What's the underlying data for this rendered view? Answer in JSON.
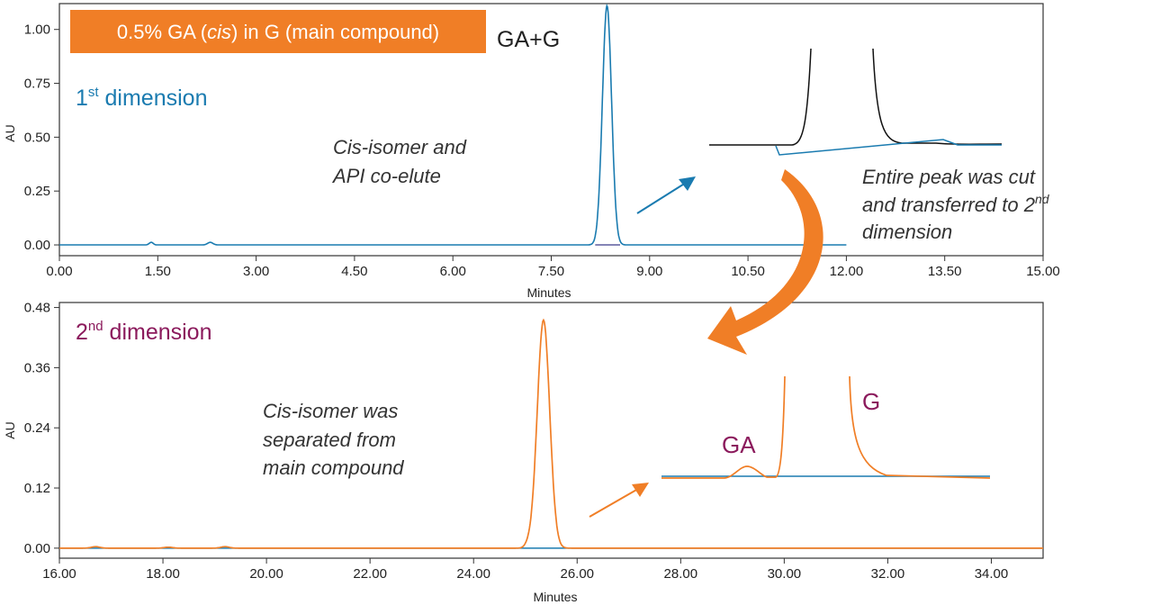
{
  "colors": {
    "blue": "#1a7bb0",
    "orange": "#f07e26",
    "purple": "#8b1a5c",
    "dark": "#222222",
    "axis": "#333333"
  },
  "banner": {
    "text": "0.5% GA (cis) in G (main compound)",
    "prefix": "0.5% GA (",
    "italic": "cis",
    "suffix": ") in G (main compound)"
  },
  "chart_data": [
    {
      "type": "line",
      "title": "1st dimension",
      "title_main": "1",
      "title_sup": "st",
      "title_rest": " dimension",
      "xlabel": "Minutes",
      "ylabel": "AU",
      "xlim": [
        0,
        15
      ],
      "ylim": [
        -0.05,
        1.12
      ],
      "xticks": [
        "0.00",
        "1.50",
        "3.00",
        "4.50",
        "6.00",
        "7.50",
        "9.00",
        "10.50",
        "12.00",
        "13.50",
        "15.00"
      ],
      "yticks": [
        "0.00",
        "0.25",
        "0.50",
        "0.75",
        "1.00"
      ],
      "trace_end": 12.0,
      "peaks": [
        {
          "x": 8.35,
          "height": 1.11,
          "width": 0.07
        },
        {
          "x": 1.4,
          "height": 0.012,
          "width": 0.03
        },
        {
          "x": 2.3,
          "height": 0.012,
          "width": 0.04
        }
      ],
      "series": [
        {
          "name": "GA+G",
          "color": "#1a7bb0"
        }
      ],
      "peak_label": "GA+G",
      "annotation": [
        "Cis-isomer and",
        "API co-elute"
      ]
    },
    {
      "type": "line",
      "title": "2nd dimension",
      "title_main": "2",
      "title_sup": "nd",
      "title_rest": " dimension",
      "xlabel": "Minutes",
      "ylabel": "AU",
      "xlim": [
        16,
        35
      ],
      "ylim": [
        -0.02,
        0.49
      ],
      "xticks": [
        "16.00",
        "18.00",
        "20.00",
        "22.00",
        "24.00",
        "26.00",
        "28.00",
        "30.00",
        "32.00",
        "34.00"
      ],
      "yticks": [
        "0.00",
        "0.12",
        "0.24",
        "0.36",
        "0.48"
      ],
      "peaks": [
        {
          "x": 25.35,
          "height": 0.455,
          "width": 0.12
        },
        {
          "x": 25.05,
          "height": 0.005,
          "width": 0.06
        },
        {
          "x": 16.7,
          "height": 0.003,
          "width": 0.08
        },
        {
          "x": 18.1,
          "height": 0.002,
          "width": 0.08
        },
        {
          "x": 19.2,
          "height": 0.003,
          "width": 0.08
        }
      ],
      "series": [
        {
          "name": "2nd dimension",
          "color": "#f07e26"
        }
      ],
      "annotation": [
        "Cis-isomer was",
        "separated from",
        "main compound"
      ]
    }
  ],
  "inset1": {
    "annotation_lines": [
      "Entire peak was cut",
      "and transferred to 2",
      "dimension"
    ],
    "sup": "nd"
  },
  "inset2": {
    "label_ga": "GA",
    "label_g": "G"
  }
}
